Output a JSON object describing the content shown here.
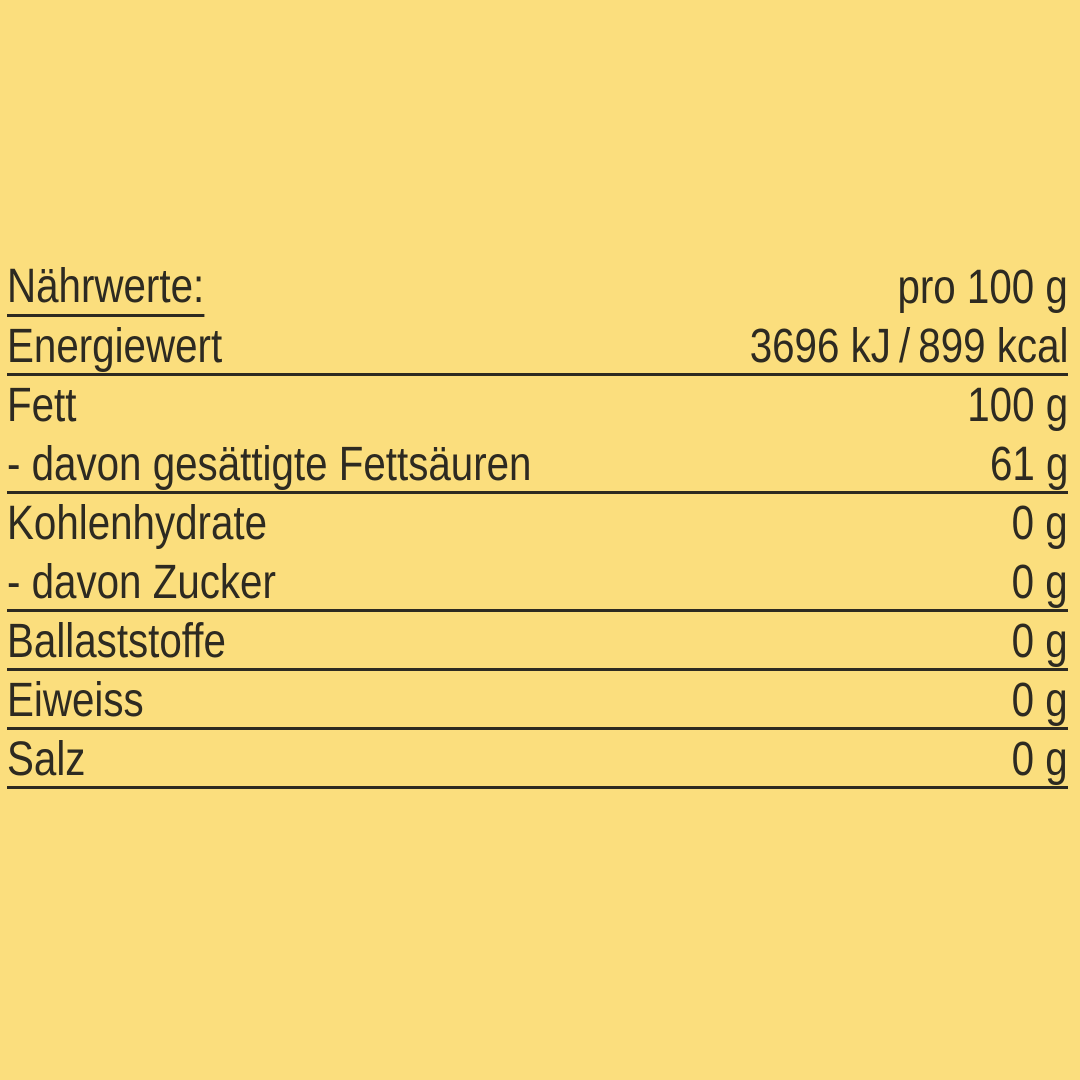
{
  "colors": {
    "background": "#fbde7d",
    "ink": "#2d2a21"
  },
  "nutrition_table": {
    "header": {
      "label": "Nährwerte:",
      "unit_label": "pro 100 g"
    },
    "rows": [
      {
        "label": "Energiewert",
        "value": "3696 kJ / 899 kcal"
      },
      {
        "label": "Fett",
        "value": "100 g"
      },
      {
        "label": "- davon gesättigte Fettsäuren",
        "value": "61 g"
      },
      {
        "label": "Kohlenhydrate",
        "value": "0 g"
      },
      {
        "label": "- davon Zucker",
        "value": "0 g"
      },
      {
        "label": "Ballaststoffe",
        "value": "0 g"
      },
      {
        "label": "Eiweiss",
        "value": "0 g"
      },
      {
        "label": "Salz",
        "value": "0 g"
      }
    ]
  }
}
